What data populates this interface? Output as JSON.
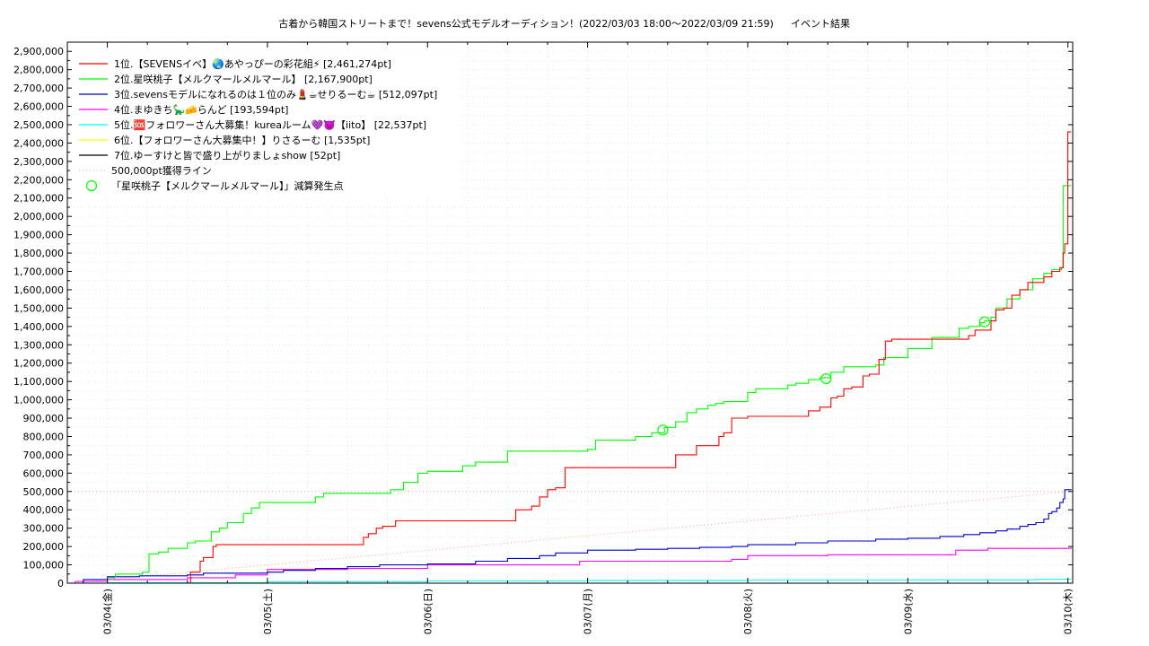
{
  "chart_data": {
    "type": "line",
    "title": "古着から韓国ストリートまで！sevens公式モデルオーディション！(2022/03/03 18:00〜2022/03/09 21:59)",
    "subtitle": "イベント結果",
    "y_ticks": [
      "0",
      "100,000",
      "200,000",
      "300,000",
      "400,000",
      "500,000",
      "600,000",
      "700,000",
      "800,000",
      "900,000",
      "1,000,000",
      "1,100,000",
      "1,200,000",
      "1,300,000",
      "1,400,000",
      "1,500,000",
      "1,600,000",
      "1,700,000",
      "1,800,000",
      "1,900,000",
      "2,000,000",
      "2,100,000",
      "2,200,000",
      "2,300,000",
      "2,400,000",
      "2,500,000",
      "2,600,000",
      "2,700,000",
      "2,800,000",
      "2,900,000"
    ],
    "ylim": [
      0,
      2950000
    ],
    "x_tick_labels": [
      "03/04(金)",
      "03/05(土)",
      "03/06(日)",
      "03/07(月)",
      "03/08(火)",
      "03/09(水)",
      "03/10(木)"
    ],
    "x_ticks_day": [
      1,
      2,
      3,
      4,
      5,
      6,
      7
    ],
    "xlim_day": [
      0.75,
      7.03
    ],
    "grid": true,
    "legend_position": "top-left",
    "series": [
      {
        "name": "1位.【SEVENSイベ】🌏あやっぴーの彩花組⚡ [2,461,274pt]",
        "color": "#ff0000",
        "x": [
          0.75,
          1.5,
          1.52,
          1.58,
          1.6,
          1.66,
          1.68,
          2.0,
          2.6,
          2.63,
          2.68,
          2.72,
          2.8,
          2.85,
          3.5,
          3.55,
          3.65,
          3.7,
          3.75,
          3.8,
          3.86,
          3.9,
          4.0,
          4.5,
          4.55,
          4.62,
          4.68,
          4.75,
          4.82,
          4.85,
          4.9,
          5.0,
          5.35,
          5.38,
          5.45,
          5.52,
          5.56,
          5.6,
          5.65,
          5.72,
          5.76,
          5.82,
          5.86,
          5.9,
          5.93,
          6.0,
          6.35,
          6.38,
          6.42,
          6.47,
          6.52,
          6.55,
          6.6,
          6.65,
          6.7,
          6.75,
          6.85,
          6.9,
          6.93,
          6.95,
          6.97,
          6.98,
          7.0,
          7.02
        ],
        "y": [
          0,
          0,
          60000,
          120000,
          140000,
          200000,
          210000,
          210000,
          250000,
          270000,
          300000,
          310000,
          340000,
          340000,
          340000,
          400000,
          420000,
          470000,
          510000,
          520000,
          630000,
          630000,
          630000,
          630000,
          700000,
          700000,
          750000,
          750000,
          800000,
          820000,
          900000,
          910000,
          910000,
          940000,
          960000,
          1010000,
          1020000,
          1060000,
          1070000,
          1130000,
          1140000,
          1220000,
          1320000,
          1330000,
          1330000,
          1330000,
          1330000,
          1350000,
          1380000,
          1380000,
          1430000,
          1490000,
          1500000,
          1570000,
          1600000,
          1640000,
          1670000,
          1700000,
          1700000,
          1720000,
          1800000,
          1850000,
          2461274,
          2461274
        ]
      },
      {
        "name": "2位.星咲桃子【メルクマールメルマール】 [2,167,900pt]",
        "color": "#00ff00",
        "x": [
          0.75,
          1.0,
          1.05,
          1.22,
          1.26,
          1.32,
          1.38,
          1.5,
          1.55,
          1.65,
          1.7,
          1.75,
          1.85,
          1.9,
          1.95,
          2.0,
          2.3,
          2.35,
          2.5,
          2.7,
          2.77,
          2.85,
          2.94,
          3.0,
          3.05,
          3.22,
          3.3,
          3.42,
          3.5,
          3.62,
          3.7,
          4.0,
          4.05,
          4.25,
          4.3,
          4.4,
          4.48,
          4.55,
          4.62,
          4.68,
          4.75,
          4.8,
          4.85,
          4.95,
          5.0,
          5.05,
          5.25,
          5.3,
          5.38,
          5.45,
          5.52,
          5.6,
          5.7,
          5.8,
          5.85,
          6.0,
          6.15,
          6.2,
          6.32,
          6.38,
          6.45,
          6.48,
          6.52,
          6.55,
          6.62,
          6.65,
          6.7,
          6.78,
          6.85,
          6.9,
          6.93,
          6.96,
          6.97,
          7.02
        ],
        "y": [
          0,
          30000,
          50000,
          60000,
          160000,
          170000,
          190000,
          220000,
          230000,
          280000,
          300000,
          330000,
          380000,
          410000,
          440000,
          440000,
          470000,
          490000,
          490000,
          490000,
          510000,
          550000,
          600000,
          610000,
          610000,
          640000,
          660000,
          660000,
          720000,
          720000,
          720000,
          730000,
          780000,
          780000,
          800000,
          820000,
          850000,
          880000,
          930000,
          950000,
          970000,
          980000,
          990000,
          990000,
          1040000,
          1060000,
          1080000,
          1090000,
          1110000,
          1120000,
          1150000,
          1180000,
          1180000,
          1190000,
          1230000,
          1280000,
          1340000,
          1340000,
          1390000,
          1400000,
          1420000,
          1430000,
          1450000,
          1500000,
          1550000,
          1550000,
          1600000,
          1660000,
          1690000,
          1710000,
          1710000,
          1720000,
          2167900,
          2167900
        ]
      },
      {
        "name": "3位.sevensモデルになれるのは１位のみ💄☕せりるーむ☕ [512,097pt]",
        "color": "#0000cc",
        "x": [
          0.75,
          0.85,
          1.0,
          1.2,
          1.5,
          1.6,
          2.0,
          2.1,
          2.3,
          2.5,
          2.7,
          3.0,
          3.3,
          3.5,
          3.7,
          3.8,
          4.0,
          4.3,
          4.5,
          4.7,
          4.9,
          5.0,
          5.3,
          5.5,
          5.8,
          6.0,
          6.2,
          6.35,
          6.45,
          6.55,
          6.62,
          6.7,
          6.75,
          6.8,
          6.85,
          6.88,
          6.9,
          6.93,
          6.95,
          6.97,
          6.98,
          7.02
        ],
        "y": [
          0,
          20000,
          35000,
          40000,
          45000,
          55000,
          60000,
          70000,
          80000,
          90000,
          100000,
          105000,
          120000,
          135000,
          150000,
          165000,
          180000,
          185000,
          190000,
          195000,
          200000,
          210000,
          220000,
          230000,
          240000,
          245000,
          255000,
          265000,
          275000,
          285000,
          295000,
          310000,
          320000,
          330000,
          350000,
          380000,
          390000,
          410000,
          440000,
          460000,
          510000,
          512097
        ]
      },
      {
        "name": "4位.まゆきち🦕🧀らんど [193,594pt]",
        "color": "#ff00ff",
        "x": [
          0.75,
          0.8,
          1.0,
          1.5,
          1.8,
          2.0,
          2.5,
          2.95,
          3.0,
          3.5,
          3.93,
          3.95,
          4.0,
          4.5,
          4.9,
          5.0,
          5.5,
          6.3,
          6.5,
          7.02
        ],
        "y": [
          0,
          10000,
          20000,
          30000,
          45000,
          75000,
          80000,
          80000,
          100000,
          100000,
          100000,
          120000,
          120000,
          120000,
          130000,
          150000,
          155000,
          180000,
          190000,
          193594
        ]
      },
      {
        "name": "5位.🆘フォロワーさん大募集！kureaルーム💜👿【iito】 [22,537pt]",
        "color": "#00ffff",
        "x": [
          0.75,
          1.0,
          2.0,
          3.0,
          4.0,
          5.0,
          6.0,
          6.8,
          7.02
        ],
        "y": [
          0,
          3000,
          8000,
          12000,
          15000,
          17000,
          18000,
          21000,
          22537
        ]
      },
      {
        "name": "6位.【フォロワーさん大募集中！】りさるーむ [1,535pt]",
        "color": "#ffff00",
        "x": [
          0.75,
          7.02
        ],
        "y": [
          0,
          1535
        ]
      },
      {
        "name": "7位.ゆーすけと皆で盛り上がりましょshow [52pt]",
        "color": "#000000",
        "x": [
          0.75,
          7.02
        ],
        "y": [
          0,
          52
        ]
      }
    ],
    "reference_lines": [
      {
        "name": "500,000pt獲得ライン",
        "color": "#ff9999",
        "style": "dotted",
        "horizontal_y": 500000,
        "diagonal": {
          "x": [
            0.75,
            7.02
          ],
          "y": [
            0,
            500000
          ]
        }
      }
    ],
    "markers": {
      "name": "「星咲桃子【メルクマールメルマール】」減算発生点",
      "color": "#00ff00",
      "x": [
        4.47,
        5.49,
        6.48
      ],
      "y": [
        835000,
        1115000,
        1425000
      ]
    }
  }
}
